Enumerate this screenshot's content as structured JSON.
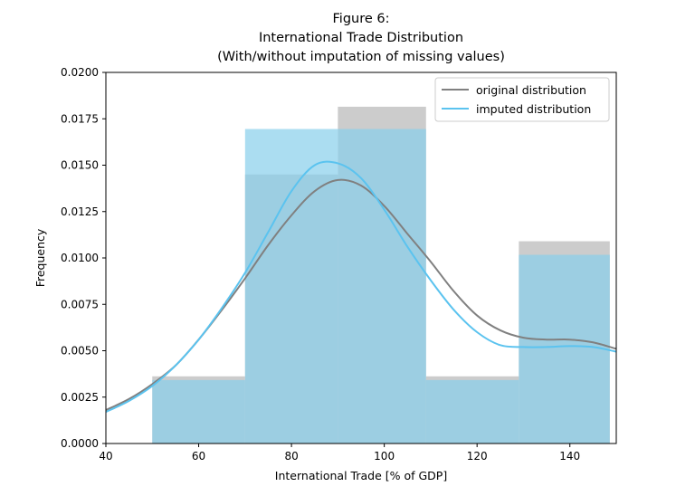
{
  "chart_data": {
    "type": "histogram",
    "title_lines": [
      "Figure 6:",
      "International Trade Distribution",
      "(With/without imputation of missing values)"
    ],
    "xlabel": "International Trade [% of GDP]",
    "ylabel": "Frequency",
    "xlim": [
      40,
      150
    ],
    "ylim": [
      0,
      0.02
    ],
    "xticks": [
      40,
      60,
      80,
      100,
      120,
      140
    ],
    "xtick_labels": [
      "40",
      "60",
      "80",
      "100",
      "120",
      "140"
    ],
    "yticks": [
      0,
      0.0025,
      0.005,
      0.0075,
      0.01,
      0.0125,
      0.015,
      0.0175,
      0.02
    ],
    "ytick_labels": [
      "0.0000",
      "0.0025",
      "0.0050",
      "0.0075",
      "0.0100",
      "0.0125",
      "0.0150",
      "0.0175",
      "0.0200"
    ],
    "grid": false,
    "legend_position": "top-right",
    "bin_edges": [
      50,
      70,
      90,
      109,
      129,
      148.6
    ],
    "series": [
      {
        "name": "original distribution",
        "color": "#808080",
        "bar_color": "#bfbfbf",
        "bar_opacity": 0.8,
        "hist": [
          0.00362,
          0.0145,
          0.01815,
          0.00362,
          0.0109
        ],
        "kde": {
          "x": [
            40,
            45,
            50,
            55,
            60,
            65,
            70,
            75,
            80,
            85,
            90,
            95,
            100,
            105,
            110,
            115,
            120,
            125,
            130,
            135,
            140,
            145,
            150
          ],
          "y": [
            0.0018,
            0.0024,
            0.0032,
            0.0042,
            0.0056,
            0.0072,
            0.0089,
            0.0107,
            0.0123,
            0.0136,
            0.0142,
            0.0139,
            0.0128,
            0.0113,
            0.0098,
            0.0082,
            0.0069,
            0.0061,
            0.0057,
            0.0056,
            0.0056,
            0.00545,
            0.0051
          ]
        }
      },
      {
        "name": "imputed distribution",
        "color": "#5bc3ef",
        "bar_color": "#87ceeb",
        "bar_opacity": 0.7,
        "hist": [
          0.00342,
          0.01695,
          0.01695,
          0.00342,
          0.01017
        ],
        "kde": {
          "x": [
            40,
            45,
            50,
            55,
            60,
            65,
            70,
            75,
            80,
            85,
            90,
            95,
            100,
            105,
            110,
            115,
            120,
            125,
            130,
            135,
            140,
            145,
            150
          ],
          "y": [
            0.0017,
            0.0023,
            0.0031,
            0.0042,
            0.0056,
            0.0073,
            0.0092,
            0.0114,
            0.0136,
            0.015,
            0.0151,
            0.0143,
            0.0126,
            0.0106,
            0.0088,
            0.0072,
            0.006,
            0.0053,
            0.0052,
            0.0052,
            0.00525,
            0.0052,
            0.00495
          ]
        }
      }
    ]
  }
}
